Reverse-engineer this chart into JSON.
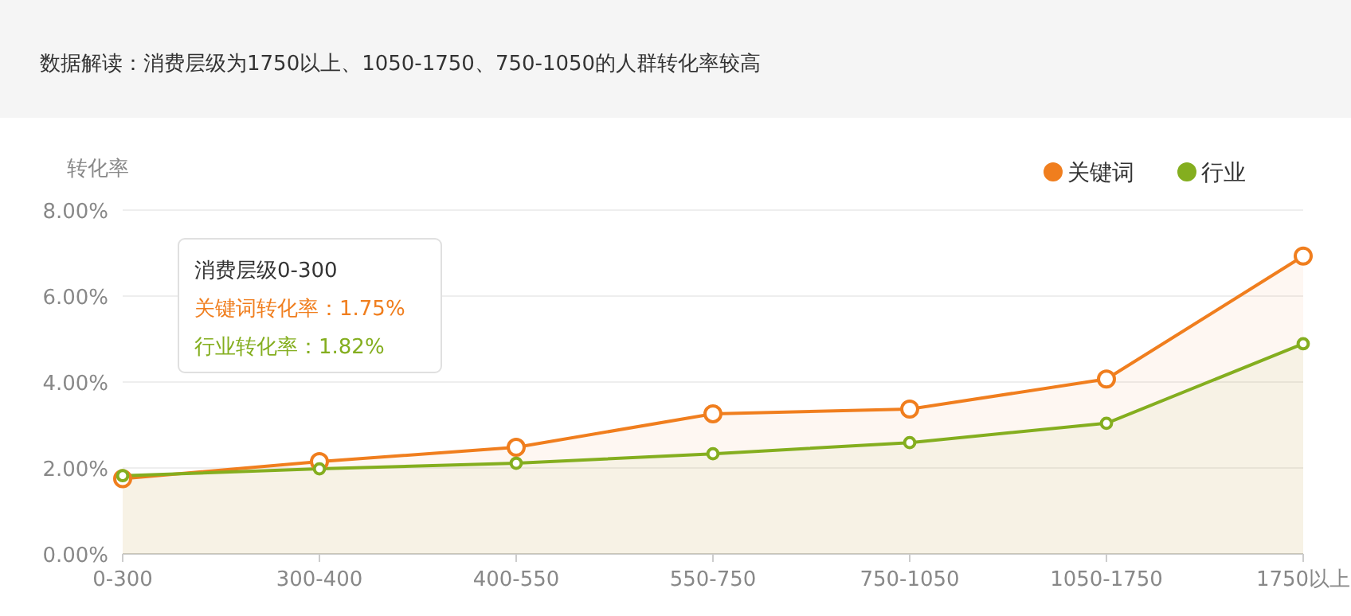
{
  "chart_data": {
    "type": "area",
    "title": "数据解读：消费层级为1750以上、1050-1750、750-1050的人群转化率较高",
    "ylabel": "转化率",
    "categories": [
      "0-300",
      "300-400",
      "400-550",
      "550-750",
      "750-1050",
      "1050-1750",
      "1750以上"
    ],
    "series": [
      {
        "name": "关键词",
        "color": "#f07e1e",
        "values": [
          1.75,
          2.15,
          2.48,
          3.26,
          3.37,
          4.07,
          6.93
        ]
      },
      {
        "name": "行业",
        "color": "#84ae1f",
        "values": [
          1.82,
          1.98,
          2.11,
          2.33,
          2.59,
          3.04,
          4.89
        ]
      }
    ],
    "ylim": [
      0,
      8
    ],
    "yticks": [
      {
        "value": 0,
        "label": "0.00%"
      },
      {
        "value": 2,
        "label": "2.00%"
      },
      {
        "value": 4,
        "label": "4.00%"
      },
      {
        "value": 6,
        "label": "6.00%"
      },
      {
        "value": 8,
        "label": "8.00%"
      }
    ],
    "grid": "y",
    "legend": "top right",
    "marker": "circle",
    "annotations": [
      "消费层级0-300",
      "关键词转化率：1.75%",
      "行业转化率：1.82%"
    ]
  }
}
